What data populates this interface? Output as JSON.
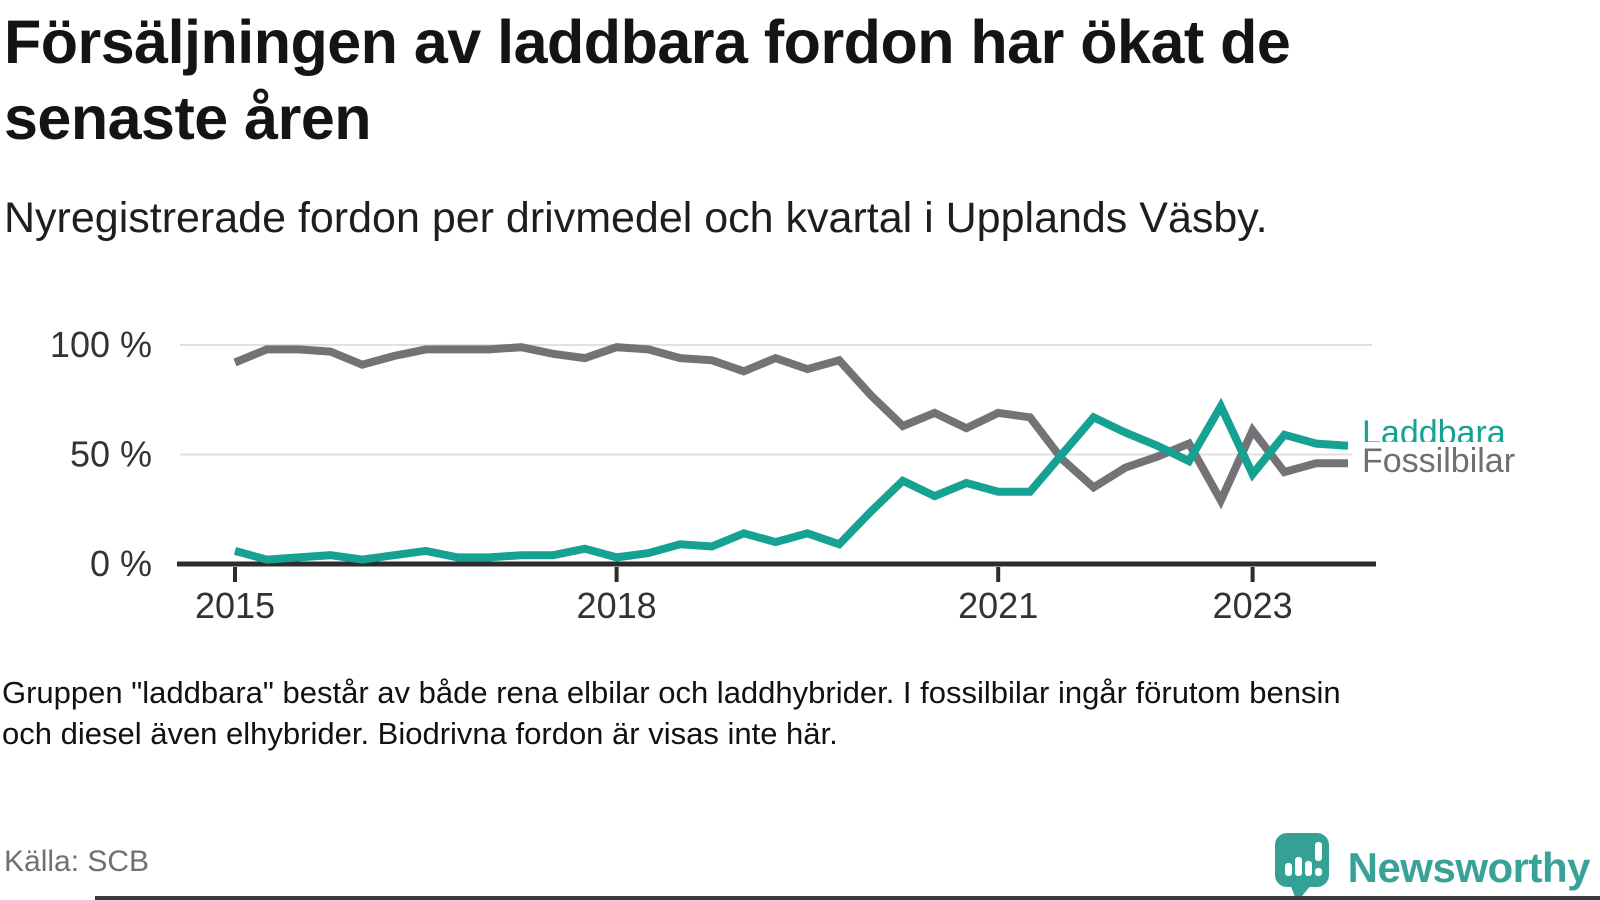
{
  "header": {
    "title_lines": [
      "Försäljningen av laddbara fordon har ökat de",
      "senaste åren"
    ],
    "subtitle": "Nyregistrerade fordon per drivmedel och kvartal i Upplands Väsby."
  },
  "chart_data": {
    "type": "line",
    "title": "Nyregistrerade fordon per drivmedel och kvartal i Upplands Väsby",
    "xlabel": "",
    "ylabel": "",
    "ylim": [
      0,
      100
    ],
    "grid": "horizontal",
    "grid_values": [
      100,
      50
    ],
    "legend_position": "right-end-of-line",
    "x_quarters": [
      "2015 Q1",
      "2015 Q2",
      "2015 Q3",
      "2015 Q4",
      "2016 Q1",
      "2016 Q2",
      "2016 Q3",
      "2016 Q4",
      "2017 Q1",
      "2017 Q2",
      "2017 Q3",
      "2017 Q4",
      "2018 Q1",
      "2018 Q2",
      "2018 Q3",
      "2018 Q4",
      "2019 Q1",
      "2019 Q2",
      "2019 Q3",
      "2019 Q4",
      "2020 Q1",
      "2020 Q2",
      "2020 Q3",
      "2020 Q4",
      "2021 Q1",
      "2021 Q2",
      "2021 Q3",
      "2021 Q4",
      "2022 Q1",
      "2022 Q2",
      "2022 Q3",
      "2022 Q4",
      "2023 Q1",
      "2023 Q2",
      "2023 Q3",
      "2023 Q4"
    ],
    "series": [
      {
        "name": "Fossilbilar",
        "color": "#737377",
        "values": [
          92,
          98,
          98,
          97,
          91,
          95,
          98,
          98,
          98,
          99,
          96,
          94,
          99,
          98,
          94,
          93,
          88,
          94,
          89,
          93,
          77,
          63,
          69,
          62,
          69,
          67,
          48,
          35,
          44,
          49,
          55,
          29,
          61,
          42,
          46,
          46
        ]
      },
      {
        "name": "Laddbara",
        "color": "#16a293",
        "values": [
          6,
          2,
          3,
          4,
          2,
          4,
          6,
          3,
          3,
          4,
          4,
          7,
          3,
          5,
          9,
          8,
          14,
          10,
          14,
          9,
          24,
          38,
          31,
          37,
          33,
          33,
          50,
          67,
          60,
          54,
          47,
          72,
          41,
          59,
          55,
          54
        ]
      }
    ],
    "y_ticks": [
      {
        "label": "100 %",
        "value": 100
      },
      {
        "label": "50 %",
        "value": 50
      },
      {
        "label": "0 %",
        "value": 0
      }
    ],
    "x_ticks": [
      {
        "label": "2015",
        "quarter_index": 0
      },
      {
        "label": "2018",
        "quarter_index": 12
      },
      {
        "label": "2021",
        "quarter_index": 24
      },
      {
        "label": "2023",
        "quarter_index": 32
      }
    ]
  },
  "footnote_lines": [
    "Gruppen \"laddbara\" består av både rena elbilar och laddhybrider. I fossilbilar ingår förutom bensin",
    "och diesel även elhybrider. Biodrivna fordon är visas inte här."
  ],
  "source": "Källa: SCB",
  "brand": {
    "name": "Newsworthy",
    "icon": "speech-bubble-bar-chart-exclamation",
    "color": "#35a094",
    "text_color": "#38a298"
  }
}
